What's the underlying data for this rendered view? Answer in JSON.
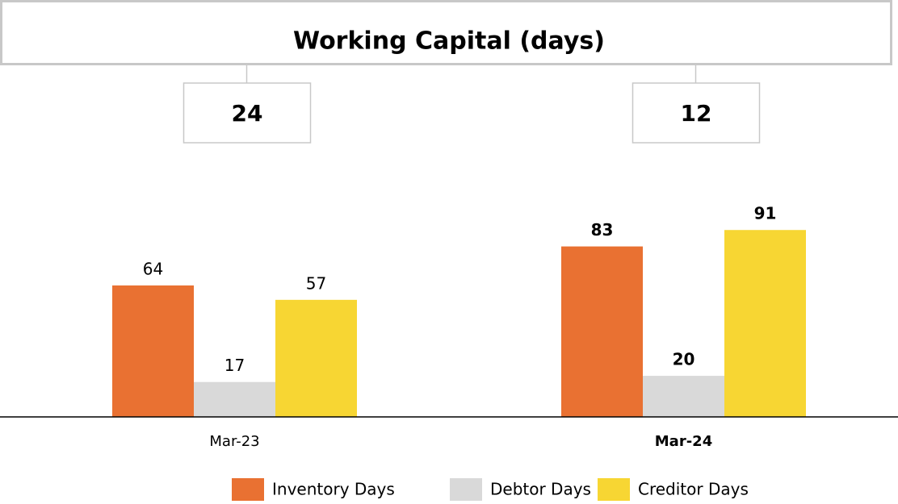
{
  "chart_data": {
    "type": "bar",
    "title": "Working Capital (days)",
    "categories": [
      "Mar-23",
      "Mar-24"
    ],
    "annotations": [
      24,
      12
    ],
    "emphasis": [
      false,
      true
    ],
    "series": [
      {
        "name": "Inventory Days",
        "color": "#E97132",
        "values": [
          64,
          83
        ]
      },
      {
        "name": "Debtor Days",
        "color": "#D9D9D9",
        "values": [
          17,
          20
        ]
      },
      {
        "name": "Creditor Days",
        "color": "#F7D633",
        "values": [
          57,
          91
        ]
      }
    ]
  }
}
